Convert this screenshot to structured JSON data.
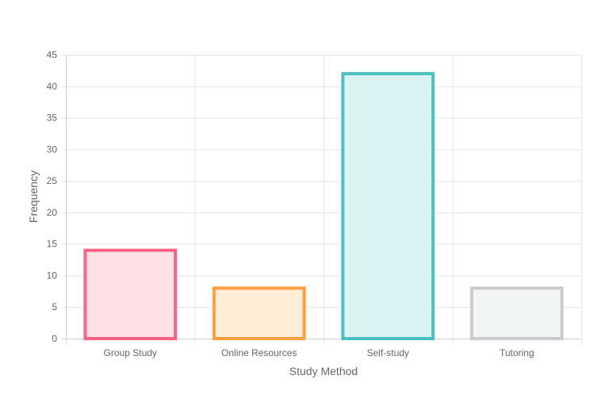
{
  "chart_data": {
    "type": "bar",
    "categories": [
      "Group Study",
      "Online Resources",
      "Self-study",
      "Tutoring"
    ],
    "values": [
      14,
      8,
      42,
      8
    ],
    "xlabel": "Study Method",
    "ylabel": "Frequency",
    "ylim": [
      0,
      45
    ],
    "yticks": [
      0,
      5,
      10,
      15,
      20,
      25,
      30,
      35,
      40,
      45
    ],
    "grid": true,
    "legend": "none",
    "colors": {
      "border": [
        "#ff6384",
        "#ff9f40",
        "#4bc0c0",
        "#c9cbcf"
      ],
      "fill": [
        "#ffe0e6",
        "#ffecd9",
        "#dbf2f2",
        "#f4f5f5"
      ],
      "grid": "#e5e5e5"
    }
  }
}
